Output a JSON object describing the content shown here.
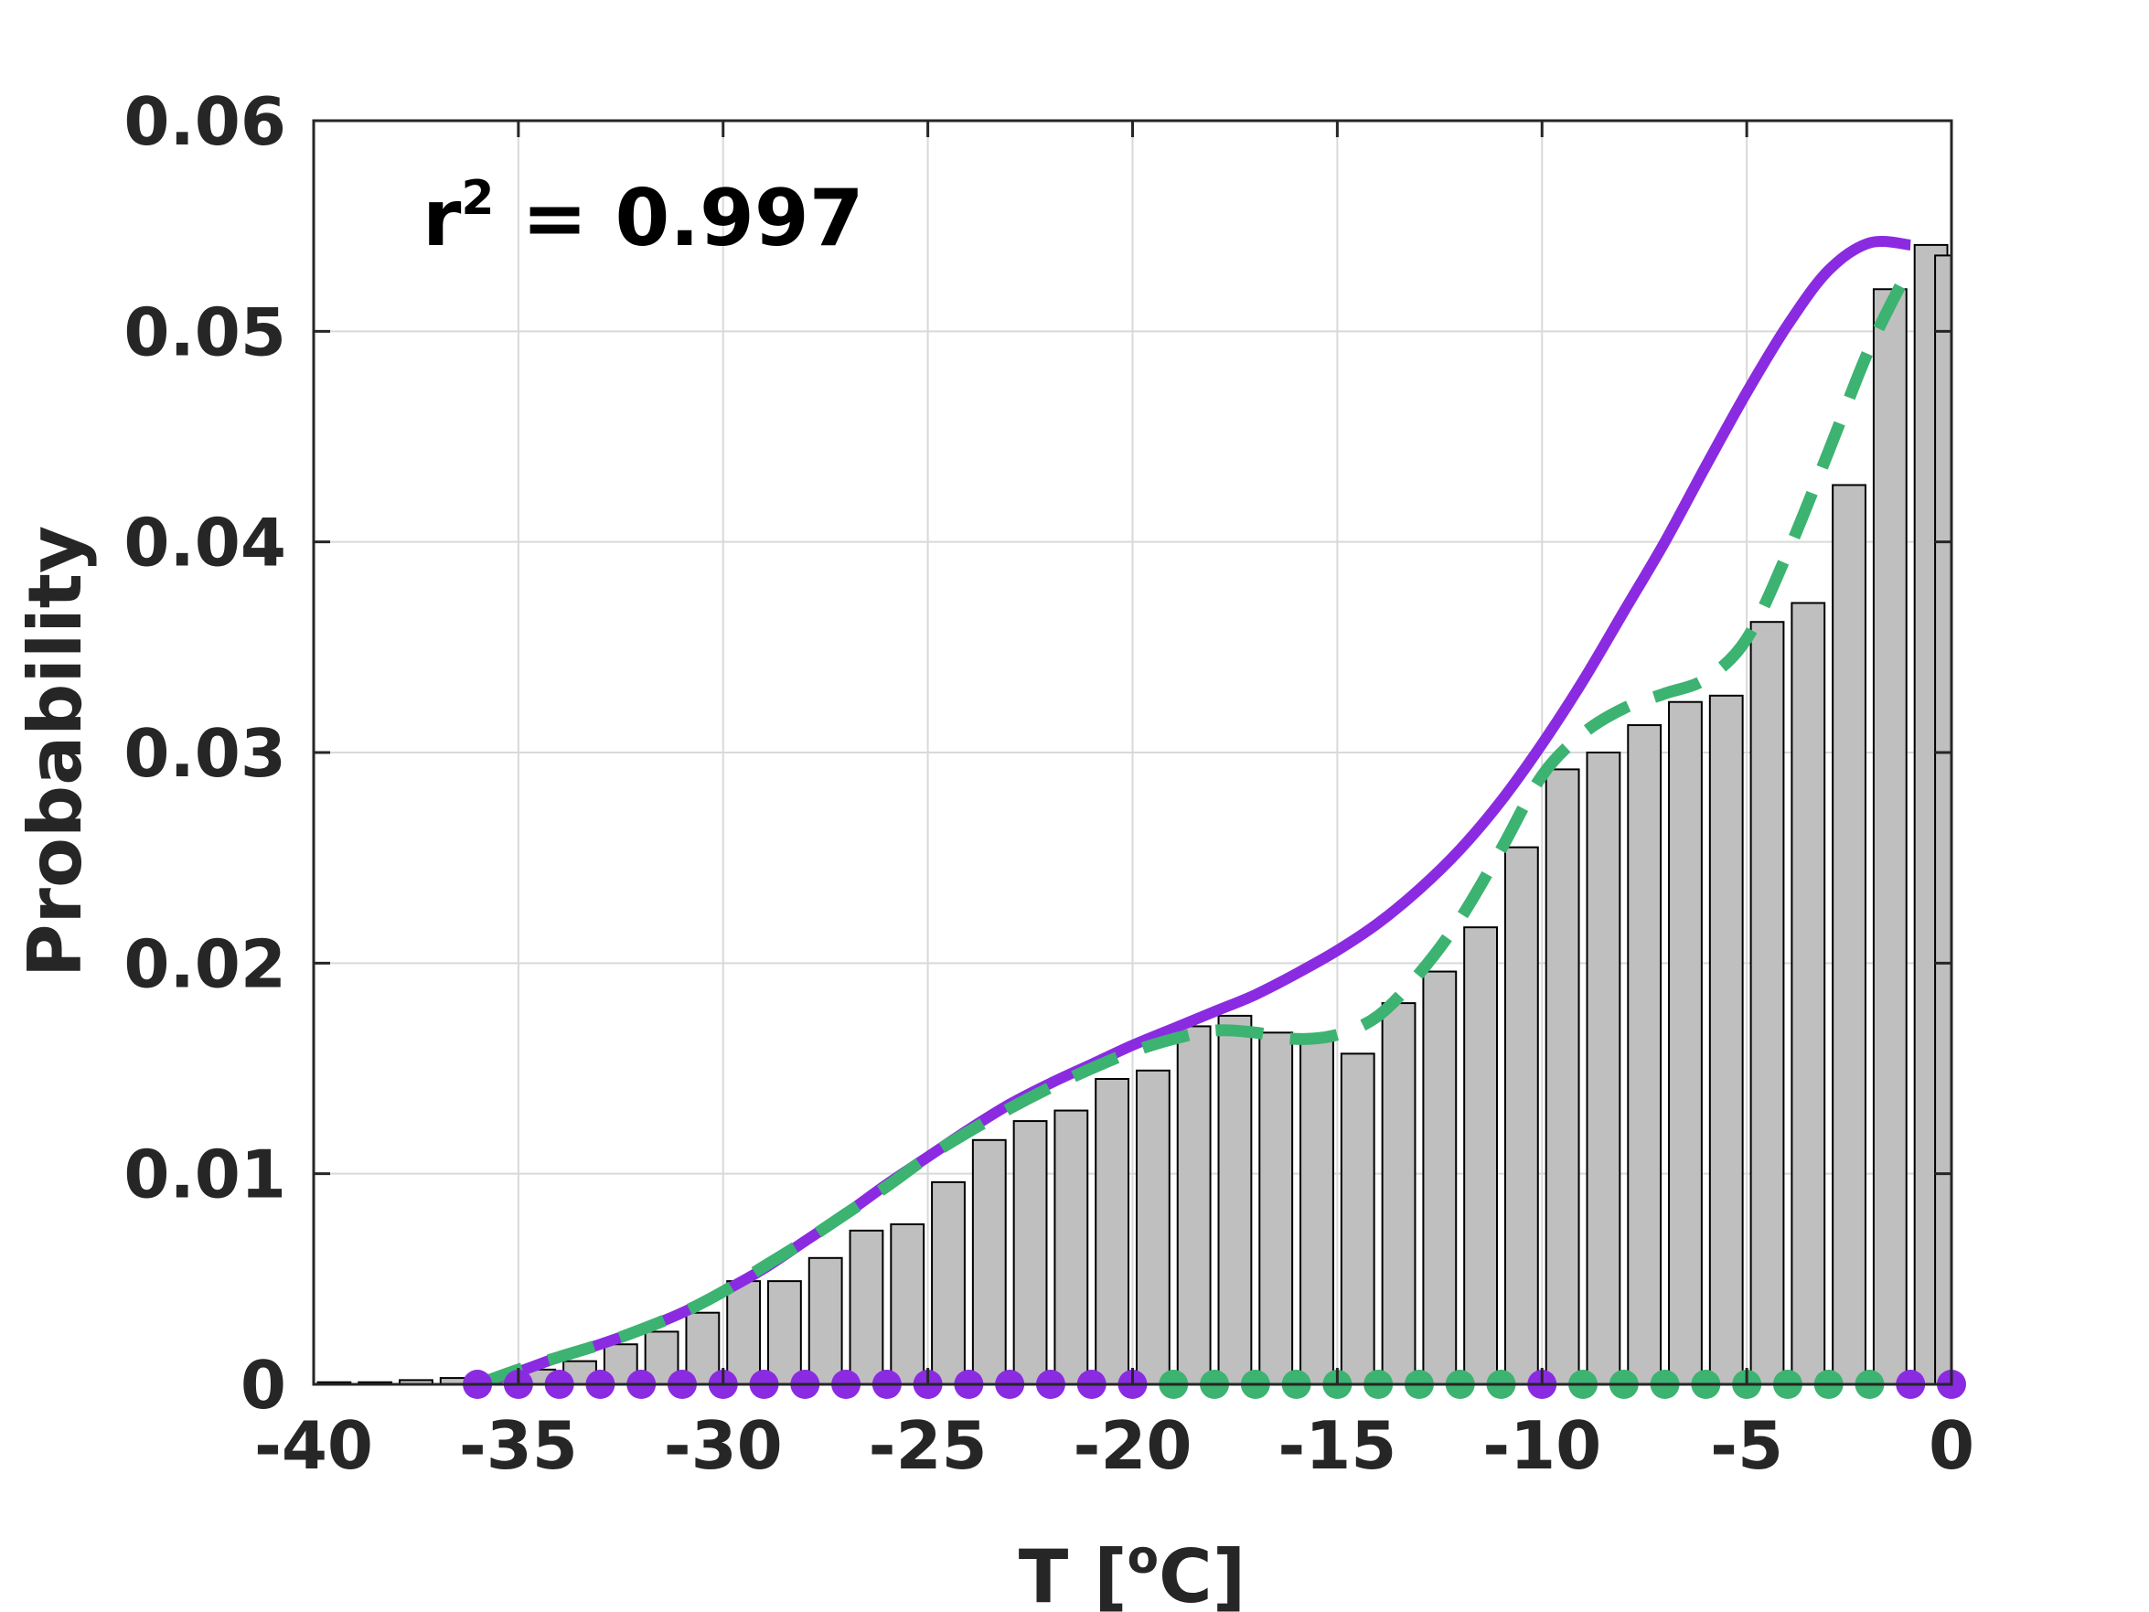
{
  "chart_data": {
    "type": "bar",
    "xlabel_main": "T [",
    "xlabel_sup": "o",
    "xlabel_end": "C]",
    "ylabel": "Probability",
    "annotation_main": "r",
    "annotation_sup": "2",
    "annotation_value": " = 0.997",
    "xlim": [
      -40,
      0
    ],
    "ylim": [
      0,
      0.06
    ],
    "xticks": [
      -40,
      -35,
      -30,
      -25,
      -20,
      -15,
      -10,
      -5,
      0
    ],
    "xtick_labels": [
      "-40",
      "-35",
      "-30",
      "-25",
      "-20",
      "-15",
      "-10",
      "-5",
      "0"
    ],
    "yticks": [
      0,
      0.01,
      0.02,
      0.03,
      0.04,
      0.05,
      0.06
    ],
    "ytick_labels": [
      "0",
      "0.01",
      "0.02",
      "0.03",
      "0.04",
      "0.05",
      "0.06"
    ],
    "grid": true,
    "bar_width": 0.8,
    "colors": {
      "bar_fill": "#bfbfbf",
      "bar_edge": "#000000",
      "solid_line": "#8a2be2",
      "dashed_line": "#3cb371",
      "grid": "#d9d9d9",
      "axis": "#262626"
    },
    "histogram": {
      "x": [
        -39.5,
        -38.5,
        -37.5,
        -36.5,
        -35.5,
        -34.5,
        -33.5,
        -32.5,
        -31.5,
        -30.5,
        -29.5,
        -28.5,
        -27.5,
        -26.5,
        -25.5,
        -24.5,
        -23.5,
        -22.5,
        -21.5,
        -20.5,
        -19.5,
        -18.5,
        -17.5,
        -16.5,
        -15.5,
        -14.5,
        -13.5,
        -12.5,
        -11.5,
        -10.5,
        -9.5,
        -8.5,
        -7.5,
        -6.5,
        -5.5,
        -4.5,
        -3.5,
        -2.5,
        -1.5,
        -0.5
      ],
      "values": [
        0.0001,
        0.0001,
        0.0002,
        0.0003,
        0.0003,
        0.0007,
        0.0011,
        0.0019,
        0.0025,
        0.0034,
        0.0049,
        0.0049,
        0.006,
        0.0073,
        0.0076,
        0.0096,
        0.0116,
        0.0125,
        0.013,
        0.0145,
        0.0149,
        0.017,
        0.0175,
        0.0167,
        0.0163,
        0.0157,
        0.0181,
        0.0196,
        0.0217,
        0.0255,
        0.0292,
        0.03,
        0.0313,
        0.0324,
        0.0327,
        0.0362,
        0.0371,
        0.0427,
        0.052,
        0.0541
      ]
    },
    "last_bar": {
      "x": 0,
      "value": 0.0536
    },
    "series": [
      {
        "style": "solid",
        "x": [
          -36,
          -35,
          -34,
          -33,
          -32,
          -31,
          -30,
          -29,
          -28,
          -27,
          -26,
          -25,
          -24,
          -23,
          -22,
          -21,
          -20,
          -19,
          -18,
          -17,
          -16,
          -15,
          -14,
          -13,
          -12,
          -11,
          -10,
          -9,
          -8,
          -7,
          -6,
          -5,
          -4,
          -3,
          -2,
          -1
        ],
        "values": [
          0,
          0.0006,
          0.0013,
          0.0019,
          0.0026,
          0.0034,
          0.0044,
          0.0055,
          0.0068,
          0.0081,
          0.0095,
          0.0108,
          0.0121,
          0.0133,
          0.0143,
          0.0152,
          0.0161,
          0.0169,
          0.0177,
          0.0185,
          0.0195,
          0.0206,
          0.0219,
          0.0235,
          0.0254,
          0.0277,
          0.0304,
          0.0334,
          0.0367,
          0.04,
          0.0436,
          0.0471,
          0.0503,
          0.0529,
          0.0542,
          0.0541
        ]
      },
      {
        "style": "dashed",
        "x": [
          -36,
          -35,
          -34,
          -33,
          -32,
          -31,
          -30,
          -29,
          -28,
          -27,
          -26,
          -25,
          -24,
          -23,
          -22,
          -21,
          -20,
          -19,
          -18,
          -17,
          -16,
          -15,
          -14,
          -13,
          -12,
          -11,
          -10,
          -9,
          -8,
          -7,
          -6,
          -5,
          -4,
          -3,
          -2,
          -1
        ],
        "values": [
          0,
          0.0007,
          0.0013,
          0.0019,
          0.0026,
          0.0034,
          0.0044,
          0.0056,
          0.0068,
          0.0081,
          0.0094,
          0.0108,
          0.012,
          0.0131,
          0.0141,
          0.015,
          0.0158,
          0.0164,
          0.0168,
          0.0167,
          0.0164,
          0.0166,
          0.0175,
          0.0195,
          0.0221,
          0.0254,
          0.0289,
          0.0309,
          0.0321,
          0.0328,
          0.0335,
          0.0354,
          0.0395,
          0.0443,
          0.0492,
          0.0531
        ]
      }
    ],
    "markers": {
      "x": [
        -36,
        -35,
        -34,
        -33,
        -32,
        -31,
        -30,
        -29,
        -28,
        -27,
        -26,
        -25,
        -24,
        -23,
        -22,
        -21,
        -20,
        -19,
        -18,
        -17,
        -16,
        -15,
        -14,
        -13,
        -12,
        -11,
        -10,
        -9,
        -8,
        -7,
        -6,
        -5,
        -4,
        -3,
        -2,
        -1,
        0
      ],
      "colors": [
        "purple",
        "purple",
        "purple",
        "purple",
        "purple",
        "purple",
        "purple",
        "purple",
        "purple",
        "purple",
        "purple",
        "purple",
        "purple",
        "purple",
        "purple",
        "purple",
        "purple",
        "green",
        "green",
        "green",
        "green",
        "green",
        "green",
        "green",
        "green",
        "green",
        "purple",
        "green",
        "green",
        "green",
        "green",
        "green",
        "green",
        "green",
        "green",
        "purple",
        "purple"
      ]
    }
  }
}
